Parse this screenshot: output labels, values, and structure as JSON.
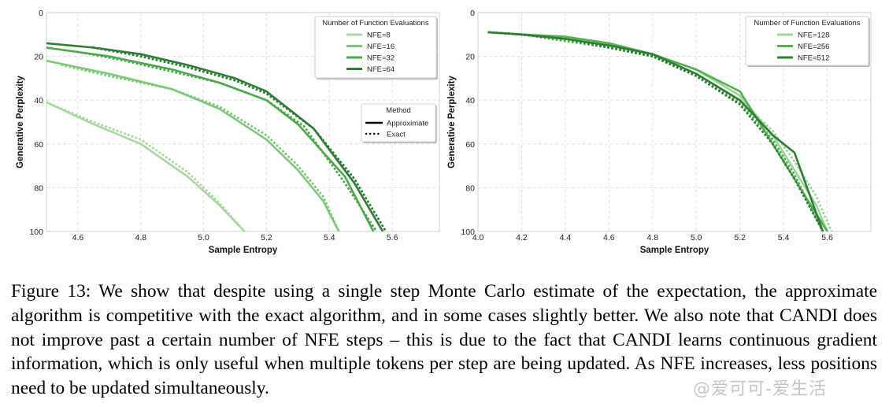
{
  "caption": "Figure 13: We show that despite using a single step Monte Carlo estimate of the expectation, the approximate algorithm is competitive with the exact algorithm, and in some cases slightly better. We also note that CANDI does not improve past a certain number of NFE steps – this is due to the fact that CANDI learns continuous gradient information, which is only useful when multiple tokens per step are being updated. As NFE increases, less positions need to be updated simultaneously.",
  "watermark": "@爱可可-爱生活",
  "chart_data": [
    {
      "type": "line",
      "xlabel": "Sample Entropy",
      "ylabel": "Generative Perplexity",
      "xlim": [
        4.5,
        5.75
      ],
      "ylim": [
        0,
        100
      ],
      "y_inverted": true,
      "xticks": [
        "4.6",
        "4.8",
        "5.0",
        "5.2",
        "5.4",
        "5.6"
      ],
      "yticks": [
        "0",
        "20",
        "40",
        "60",
        "80",
        "100"
      ],
      "grid": true,
      "legends": [
        {
          "title": "Number of Function Evaluations",
          "placement": "top-right",
          "entries": [
            "NFE=8",
            "NFE=16",
            "NFE=32",
            "NFE=64"
          ],
          "colors": [
            "#a8d8a0",
            "#7ec87a",
            "#4ea94e",
            "#2e7d35"
          ]
        },
        {
          "title": "Method",
          "placement": "center-right",
          "entries": [
            "Approximate",
            "Exact"
          ],
          "styles": [
            "solid",
            "dotted"
          ]
        }
      ],
      "series": [
        {
          "name": "NFE=8",
          "method": "Approximate",
          "color": "#a8d8a0",
          "x": [
            4.5,
            4.65,
            4.8,
            4.95,
            5.05,
            5.13
          ],
          "y": [
            41,
            51,
            60,
            75,
            88,
            100
          ]
        },
        {
          "name": "NFE=8",
          "method": "Exact",
          "color": "#a8d8a0",
          "x": [
            4.5,
            4.65,
            4.8,
            4.95,
            5.05,
            5.13
          ],
          "y": [
            41,
            50,
            58,
            73,
            87,
            100
          ]
        },
        {
          "name": "NFE=16",
          "method": "Approximate",
          "color": "#7ec87a",
          "x": [
            4.5,
            4.7,
            4.9,
            5.05,
            5.2,
            5.3,
            5.38,
            5.43
          ],
          "y": [
            22,
            28,
            35,
            44,
            58,
            72,
            86,
            100
          ]
        },
        {
          "name": "NFE=16",
          "method": "Exact",
          "color": "#7ec87a",
          "x": [
            4.55,
            4.7,
            4.9,
            5.05,
            5.2,
            5.3,
            5.38,
            5.43
          ],
          "y": [
            24,
            29,
            35,
            43,
            56,
            70,
            84,
            100
          ]
        },
        {
          "name": "NFE=32",
          "method": "Approximate",
          "color": "#4ea94e",
          "x": [
            4.5,
            4.7,
            4.9,
            5.05,
            5.2,
            5.3,
            5.45,
            5.54
          ],
          "y": [
            16,
            20,
            26,
            32,
            40,
            51,
            75,
            100
          ]
        },
        {
          "name": "NFE=32",
          "method": "Exact",
          "color": "#4ea94e",
          "x": [
            4.6,
            4.75,
            4.9,
            5.05,
            5.2,
            5.32,
            5.45,
            5.55
          ],
          "y": [
            18,
            22,
            27,
            32,
            40,
            52,
            78,
            100
          ]
        },
        {
          "name": "NFE=64",
          "method": "Approximate",
          "color": "#2e7d35",
          "x": [
            4.5,
            4.65,
            4.8,
            4.95,
            5.1,
            5.2,
            5.35,
            5.48,
            5.57
          ],
          "y": [
            14,
            16,
            19,
            24,
            30,
            36,
            53,
            78,
            100
          ]
        },
        {
          "name": "NFE=64",
          "method": "Exact",
          "color": "#2e7d35",
          "x": [
            4.65,
            4.8,
            4.95,
            5.1,
            5.2,
            5.35,
            5.48,
            5.58
          ],
          "y": [
            16,
            20,
            25,
            31,
            37,
            53,
            76,
            100
          ]
        }
      ]
    },
    {
      "type": "line",
      "xlabel": "Sample Entropy",
      "ylabel": "Generative Perplexity",
      "xlim": [
        4.0,
        5.8
      ],
      "ylim": [
        0,
        100
      ],
      "y_inverted": true,
      "xticks": [
        "4.0",
        "4.2",
        "4.4",
        "4.6",
        "4.8",
        "5.0",
        "5.2",
        "5.4",
        "5.6"
      ],
      "yticks": [
        "0",
        "20",
        "40",
        "60",
        "80",
        "100"
      ],
      "grid": true,
      "legends": [
        {
          "title": "Number of Function Evaluations",
          "placement": "top-right",
          "entries": [
            "NFE=128",
            "NFE=256",
            "NFE=512"
          ],
          "colors": [
            "#9fd49a",
            "#4fb24c",
            "#2e7d35"
          ]
        }
      ],
      "series": [
        {
          "name": "NFE=128",
          "method": "Approximate",
          "color": "#9fd49a",
          "x": [
            4.05,
            4.2,
            4.4,
            4.6,
            4.8,
            5.0,
            5.2,
            5.35,
            5.45,
            5.55,
            5.6
          ],
          "y": [
            9,
            10,
            12,
            15,
            19,
            26,
            38,
            56,
            72,
            88,
            100
          ]
        },
        {
          "name": "NFE=128",
          "method": "Exact",
          "color": "#9fd49a",
          "x": [
            4.05,
            4.2,
            4.4,
            4.6,
            4.8,
            5.0,
            5.2,
            5.35,
            5.45,
            5.55,
            5.62
          ],
          "y": [
            9,
            10,
            12,
            15,
            20,
            28,
            40,
            54,
            68,
            84,
            100
          ]
        },
        {
          "name": "NFE=256",
          "method": "Approximate",
          "color": "#4fb24c",
          "x": [
            4.05,
            4.2,
            4.4,
            4.6,
            4.8,
            5.0,
            5.2,
            5.3,
            5.4,
            5.5,
            5.6
          ],
          "y": [
            9,
            10,
            11,
            14,
            19,
            26,
            36,
            52,
            68,
            84,
            100
          ]
        },
        {
          "name": "NFE=256",
          "method": "Exact",
          "color": "#4fb24c",
          "x": [
            4.05,
            4.2,
            4.4,
            4.6,
            4.8,
            5.0,
            5.2,
            5.35,
            5.45,
            5.58
          ],
          "y": [
            9,
            10,
            13,
            16,
            20,
            28,
            41,
            58,
            74,
            100
          ]
        },
        {
          "name": "NFE=512",
          "method": "Approximate",
          "color": "#2e7d35",
          "x": [
            4.05,
            4.2,
            4.4,
            4.6,
            4.8,
            5.0,
            5.2,
            5.35,
            5.45,
            5.58
          ],
          "y": [
            9,
            10,
            12,
            15,
            19,
            28,
            40,
            56,
            64,
            100
          ]
        },
        {
          "name": "NFE=512",
          "method": "Exact",
          "color": "#2e7d35",
          "x": [
            4.05,
            4.2,
            4.4,
            4.6,
            4.8,
            5.0,
            5.2,
            5.35,
            5.45,
            5.58
          ],
          "y": [
            9,
            10,
            12,
            16,
            20,
            29,
            42,
            60,
            76,
            100
          ]
        }
      ]
    }
  ]
}
